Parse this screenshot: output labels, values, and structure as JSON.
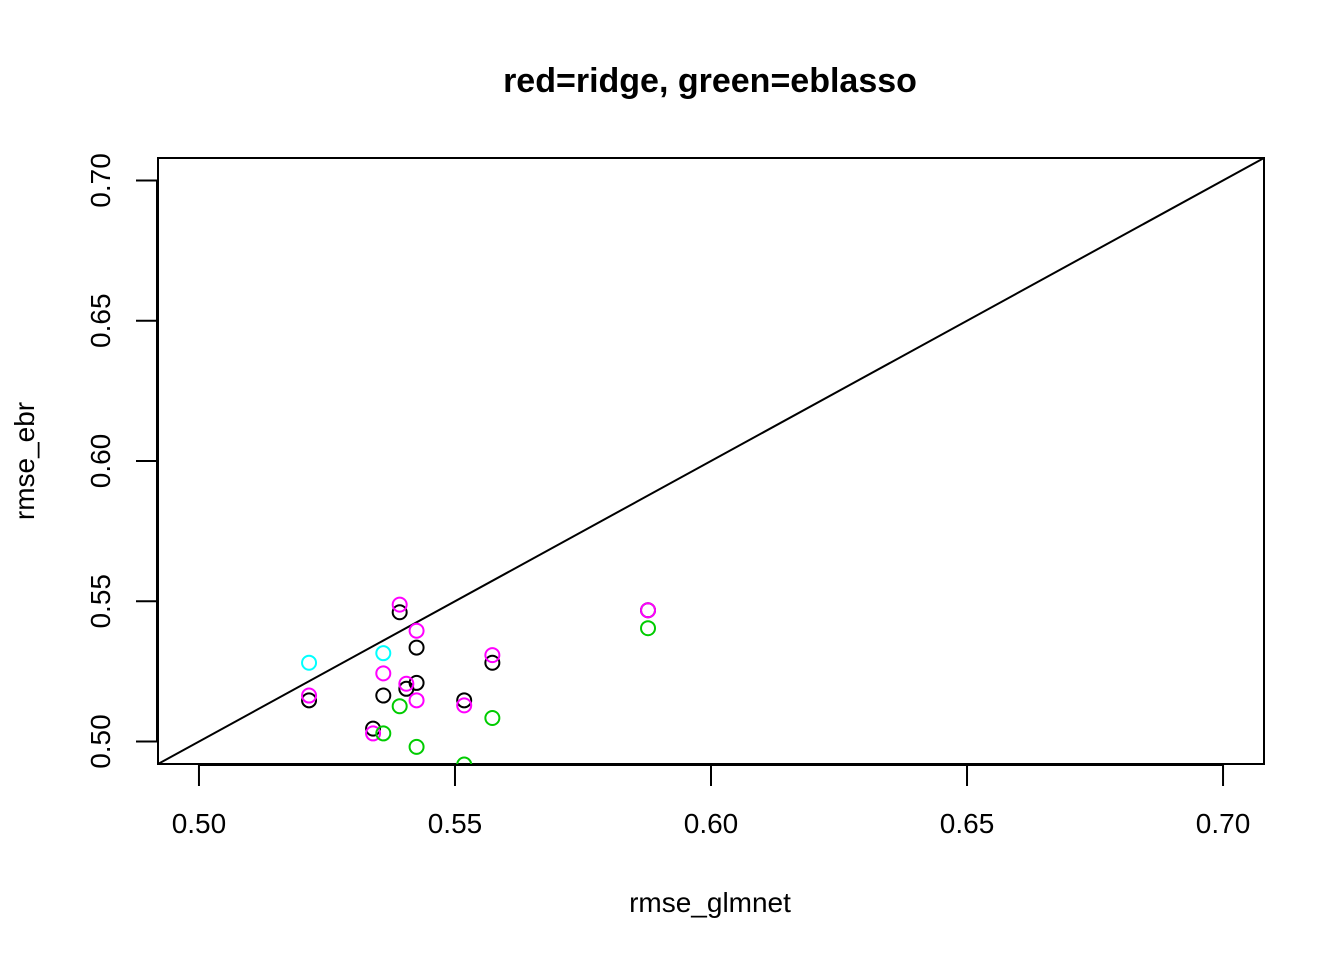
{
  "chart_data": {
    "type": "scatter",
    "title": "red=ridge, green=eblasso",
    "xlabel": "rmse_glmnet",
    "ylabel": "rmse_ebr",
    "xlim": [
      0.492,
      0.708
    ],
    "ylim": [
      0.492,
      0.708
    ],
    "x_ticks": [
      0.5,
      0.55,
      0.6,
      0.65,
      0.7
    ],
    "x_tick_labels": [
      "0.50",
      "0.55",
      "0.60",
      "0.65",
      "0.70"
    ],
    "y_ticks": [
      0.5,
      0.55,
      0.6,
      0.65,
      0.7
    ],
    "y_tick_labels": [
      "0.50",
      "0.55",
      "0.60",
      "0.65",
      "0.70"
    ],
    "grid": false,
    "reference_line": {
      "slope": 1,
      "intercept": 0,
      "color": "#000000"
    },
    "series": [
      {
        "color": "#000000",
        "points": [
          [
            0.5215,
            0.5147
          ],
          [
            0.534,
            0.5046
          ],
          [
            0.536,
            0.5164
          ],
          [
            0.5392,
            0.5461
          ],
          [
            0.5405,
            0.5188
          ],
          [
            0.5425,
            0.5209
          ],
          [
            0.5425,
            0.5335
          ],
          [
            0.5518,
            0.5147
          ],
          [
            0.5573,
            0.5281
          ],
          [
            0.5877,
            0.5468
          ]
        ]
      },
      {
        "color": "#ff00ff",
        "points": [
          [
            0.5215,
            0.5164
          ],
          [
            0.534,
            0.5029
          ],
          [
            0.536,
            0.5243
          ],
          [
            0.5392,
            0.5488
          ],
          [
            0.5405,
            0.5206
          ],
          [
            0.5425,
            0.5395
          ],
          [
            0.5425,
            0.5147
          ],
          [
            0.5518,
            0.5129
          ],
          [
            0.5573,
            0.5308
          ],
          [
            0.5877,
            0.5468
          ]
        ]
      },
      {
        "color": "#00cc00",
        "points": [
          [
            0.536,
            0.5029
          ],
          [
            0.5392,
            0.5126
          ],
          [
            0.5425,
            0.4981
          ],
          [
            0.5518,
            0.4918
          ],
          [
            0.5573,
            0.5084
          ],
          [
            0.5877,
            0.5404
          ]
        ]
      },
      {
        "color": "#00ffff",
        "points": [
          [
            0.5215,
            0.5281
          ],
          [
            0.536,
            0.5315
          ]
        ]
      }
    ]
  }
}
